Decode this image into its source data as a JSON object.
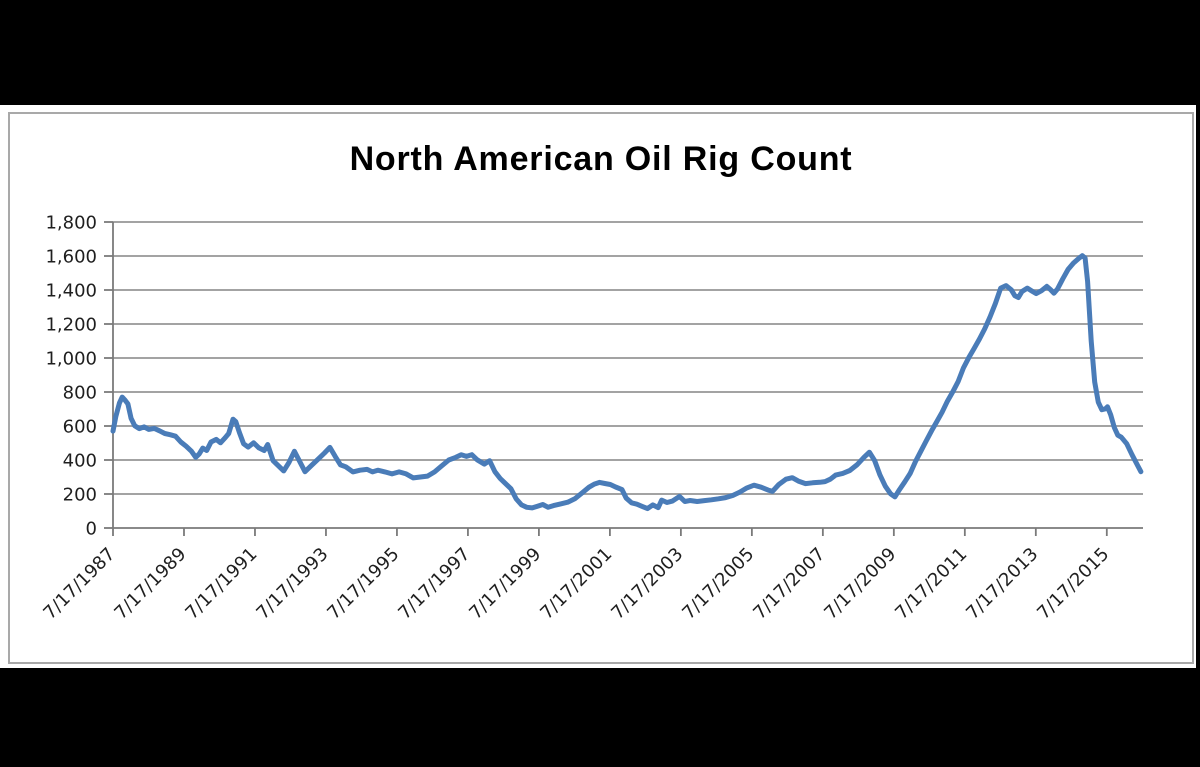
{
  "chart_data": {
    "type": "line",
    "title": "North American Oil Rig Count",
    "legend": "none",
    "grid": true,
    "colors": {
      "line": "#4a7cb8",
      "grid": "#969696",
      "axis": "#7a7a7a",
      "tick_text": "#1f1f1f",
      "title_text": "#000000",
      "plot_bg": "#ffffff",
      "surround_bg": "#000000",
      "frame_border": "#a9a9a9"
    },
    "y_axis": {
      "min": 0,
      "max": 1800,
      "tick_step": 200,
      "ticks": [
        {
          "value": 0,
          "label": "0"
        },
        {
          "value": 200,
          "label": "200"
        },
        {
          "value": 400,
          "label": "400"
        },
        {
          "value": 600,
          "label": "600"
        },
        {
          "value": 800,
          "label": "800"
        },
        {
          "value": 1000,
          "label": "1,000"
        },
        {
          "value": 1200,
          "label": "1,200"
        },
        {
          "value": 1400,
          "label": "1,400"
        },
        {
          "value": 1600,
          "label": "1,600"
        },
        {
          "value": 1800,
          "label": "1,800"
        }
      ]
    },
    "x_axis": {
      "unit": "decimal_year",
      "range": [
        1987.54,
        2016.56
      ],
      "ticks": [
        {
          "year": 1987.54,
          "label": "7/17/1987"
        },
        {
          "year": 1989.54,
          "label": "7/17/1989"
        },
        {
          "year": 1991.54,
          "label": "7/17/1991"
        },
        {
          "year": 1993.54,
          "label": "7/17/1993"
        },
        {
          "year": 1995.54,
          "label": "7/17/1995"
        },
        {
          "year": 1997.54,
          "label": "7/17/1997"
        },
        {
          "year": 1999.54,
          "label": "7/17/1999"
        },
        {
          "year": 2001.54,
          "label": "7/17/2001"
        },
        {
          "year": 2003.54,
          "label": "7/17/2003"
        },
        {
          "year": 2005.54,
          "label": "7/17/2005"
        },
        {
          "year": 2007.54,
          "label": "7/17/2007"
        },
        {
          "year": 2009.54,
          "label": "7/17/2009"
        },
        {
          "year": 2011.54,
          "label": "7/17/2011"
        },
        {
          "year": 2013.54,
          "label": "7/17/2013"
        },
        {
          "year": 2015.54,
          "label": "7/17/2015"
        }
      ]
    },
    "series": [
      {
        "name": "North American Oil Rig Count",
        "color": "#4a7cb8",
        "points": [
          [
            1987.54,
            570
          ],
          [
            1987.62,
            655
          ],
          [
            1987.72,
            735
          ],
          [
            1987.8,
            770
          ],
          [
            1987.88,
            752
          ],
          [
            1987.96,
            730
          ],
          [
            1988.05,
            645
          ],
          [
            1988.15,
            602
          ],
          [
            1988.28,
            585
          ],
          [
            1988.42,
            595
          ],
          [
            1988.55,
            580
          ],
          [
            1988.7,
            586
          ],
          [
            1988.85,
            572
          ],
          [
            1989.0,
            556
          ],
          [
            1989.15,
            549
          ],
          [
            1989.3,
            540
          ],
          [
            1989.45,
            506
          ],
          [
            1989.6,
            481
          ],
          [
            1989.75,
            452
          ],
          [
            1989.87,
            416
          ],
          [
            1989.97,
            436
          ],
          [
            1990.07,
            470
          ],
          [
            1990.18,
            456
          ],
          [
            1990.3,
            506
          ],
          [
            1990.45,
            521
          ],
          [
            1990.57,
            501
          ],
          [
            1990.7,
            531
          ],
          [
            1990.8,
            556
          ],
          [
            1990.92,
            640
          ],
          [
            1991.0,
            626
          ],
          [
            1991.1,
            562
          ],
          [
            1991.22,
            496
          ],
          [
            1991.35,
            476
          ],
          [
            1991.5,
            501
          ],
          [
            1991.65,
            471
          ],
          [
            1991.8,
            456
          ],
          [
            1991.9,
            491
          ],
          [
            1992.05,
            396
          ],
          [
            1992.2,
            366
          ],
          [
            1992.35,
            336
          ],
          [
            1992.5,
            386
          ],
          [
            1992.65,
            451
          ],
          [
            1992.8,
            391
          ],
          [
            1992.95,
            331
          ],
          [
            1993.1,
            361
          ],
          [
            1993.3,
            401
          ],
          [
            1993.5,
            441
          ],
          [
            1993.65,
            474
          ],
          [
            1993.8,
            421
          ],
          [
            1993.95,
            371
          ],
          [
            1994.1,
            360
          ],
          [
            1994.3,
            330
          ],
          [
            1994.5,
            340
          ],
          [
            1994.7,
            345
          ],
          [
            1994.85,
            330
          ],
          [
            1995.0,
            340
          ],
          [
            1995.2,
            330
          ],
          [
            1995.4,
            318
          ],
          [
            1995.6,
            330
          ],
          [
            1995.8,
            318
          ],
          [
            1996.0,
            295
          ],
          [
            1996.2,
            300
          ],
          [
            1996.4,
            305
          ],
          [
            1996.6,
            330
          ],
          [
            1996.8,
            365
          ],
          [
            1997.0,
            400
          ],
          [
            1997.2,
            416
          ],
          [
            1997.35,
            431
          ],
          [
            1997.5,
            421
          ],
          [
            1997.65,
            431
          ],
          [
            1997.8,
            401
          ],
          [
            1998.0,
            376
          ],
          [
            1998.15,
            396
          ],
          [
            1998.3,
            331
          ],
          [
            1998.45,
            291
          ],
          [
            1998.6,
            261
          ],
          [
            1998.75,
            231
          ],
          [
            1998.9,
            171
          ],
          [
            1999.05,
            136
          ],
          [
            1999.2,
            122
          ],
          [
            1999.35,
            118
          ],
          [
            1999.5,
            128
          ],
          [
            1999.65,
            138
          ],
          [
            1999.8,
            122
          ],
          [
            1999.95,
            132
          ],
          [
            2000.15,
            142
          ],
          [
            2000.35,
            152
          ],
          [
            2000.55,
            172
          ],
          [
            2000.75,
            205
          ],
          [
            2000.95,
            240
          ],
          [
            2001.1,
            258
          ],
          [
            2001.25,
            268
          ],
          [
            2001.4,
            262
          ],
          [
            2001.55,
            256
          ],
          [
            2001.7,
            241
          ],
          [
            2001.88,
            226
          ],
          [
            2002.0,
            176
          ],
          [
            2002.15,
            148
          ],
          [
            2002.3,
            140
          ],
          [
            2002.45,
            127
          ],
          [
            2002.6,
            114
          ],
          [
            2002.75,
            136
          ],
          [
            2002.9,
            120
          ],
          [
            2003.0,
            164
          ],
          [
            2003.15,
            150
          ],
          [
            2003.3,
            158
          ],
          [
            2003.5,
            186
          ],
          [
            2003.65,
            156
          ],
          [
            2003.8,
            162
          ],
          [
            2004.0,
            156
          ],
          [
            2004.2,
            161
          ],
          [
            2004.4,
            166
          ],
          [
            2004.6,
            172
          ],
          [
            2004.8,
            179
          ],
          [
            2005.0,
            191
          ],
          [
            2005.2,
            211
          ],
          [
            2005.4,
            236
          ],
          [
            2005.6,
            252
          ],
          [
            2005.8,
            240
          ],
          [
            2006.0,
            223
          ],
          [
            2006.12,
            216
          ],
          [
            2006.3,
            256
          ],
          [
            2006.5,
            287
          ],
          [
            2006.68,
            296
          ],
          [
            2006.85,
            276
          ],
          [
            2007.05,
            261
          ],
          [
            2007.25,
            266
          ],
          [
            2007.45,
            269
          ],
          [
            2007.6,
            273
          ],
          [
            2007.75,
            287
          ],
          [
            2007.9,
            311
          ],
          [
            2008.1,
            321
          ],
          [
            2008.3,
            338
          ],
          [
            2008.5,
            371
          ],
          [
            2008.7,
            416
          ],
          [
            2008.85,
            446
          ],
          [
            2009.0,
            396
          ],
          [
            2009.15,
            311
          ],
          [
            2009.3,
            246
          ],
          [
            2009.45,
            201
          ],
          [
            2009.57,
            183
          ],
          [
            2009.7,
            226
          ],
          [
            2009.85,
            272
          ],
          [
            2010.0,
            321
          ],
          [
            2010.15,
            391
          ],
          [
            2010.3,
            451
          ],
          [
            2010.45,
            511
          ],
          [
            2010.6,
            571
          ],
          [
            2010.75,
            626
          ],
          [
            2010.9,
            681
          ],
          [
            2011.05,
            746
          ],
          [
            2011.2,
            801
          ],
          [
            2011.35,
            861
          ],
          [
            2011.5,
            941
          ],
          [
            2011.65,
            1001
          ],
          [
            2011.8,
            1056
          ],
          [
            2011.95,
            1111
          ],
          [
            2012.1,
            1171
          ],
          [
            2012.25,
            1241
          ],
          [
            2012.4,
            1321
          ],
          [
            2012.55,
            1411
          ],
          [
            2012.7,
            1426
          ],
          [
            2012.85,
            1401
          ],
          [
            2012.95,
            1366
          ],
          [
            2013.05,
            1356
          ],
          [
            2013.15,
            1391
          ],
          [
            2013.3,
            1411
          ],
          [
            2013.45,
            1391
          ],
          [
            2013.55,
            1379
          ],
          [
            2013.7,
            1396
          ],
          [
            2013.85,
            1421
          ],
          [
            2013.95,
            1403
          ],
          [
            2014.05,
            1381
          ],
          [
            2014.15,
            1406
          ],
          [
            2014.3,
            1466
          ],
          [
            2014.45,
            1521
          ],
          [
            2014.6,
            1558
          ],
          [
            2014.75,
            1586
          ],
          [
            2014.85,
            1602
          ],
          [
            2014.93,
            1588
          ],
          [
            2015.0,
            1450
          ],
          [
            2015.1,
            1100
          ],
          [
            2015.2,
            858
          ],
          [
            2015.3,
            740
          ],
          [
            2015.4,
            696
          ],
          [
            2015.5,
            701
          ],
          [
            2015.56,
            713
          ],
          [
            2015.65,
            666
          ],
          [
            2015.75,
            591
          ],
          [
            2015.85,
            546
          ],
          [
            2015.95,
            534
          ],
          [
            2016.1,
            496
          ],
          [
            2016.25,
            431
          ],
          [
            2016.4,
            371
          ],
          [
            2016.5,
            331
          ]
        ]
      }
    ]
  }
}
